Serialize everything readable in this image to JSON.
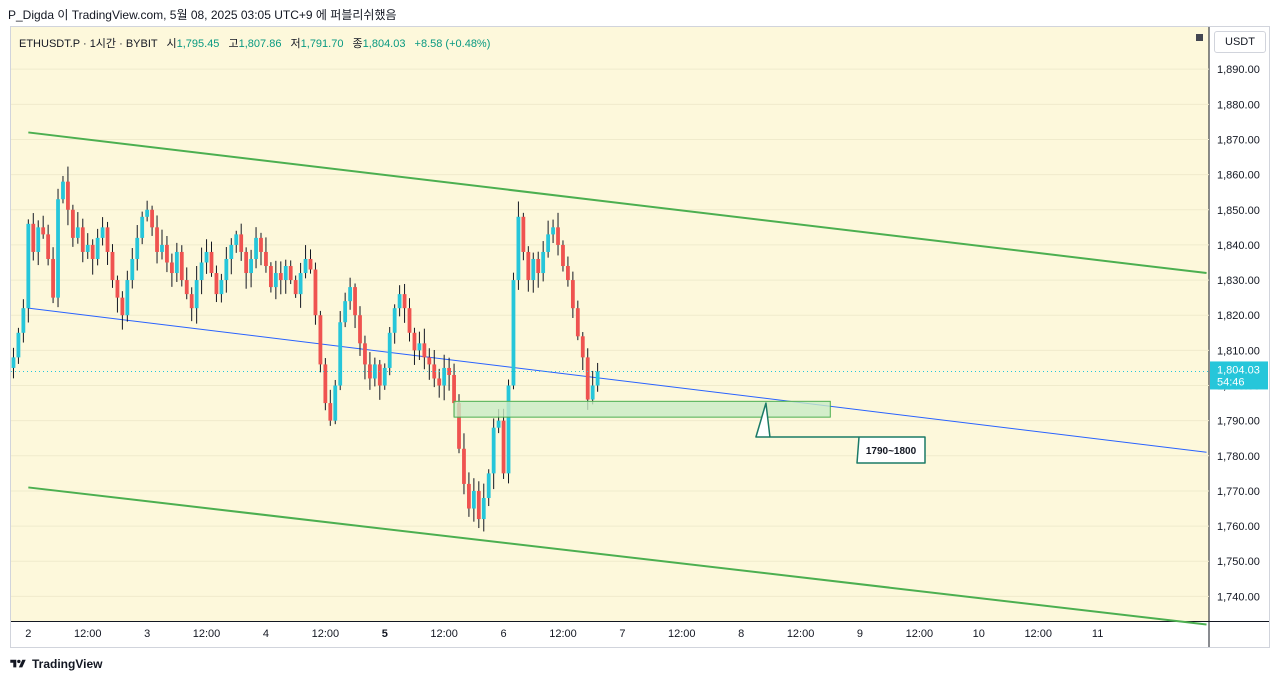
{
  "header": {
    "title": "P_Digda 이 TradingView.com, 5월 08, 2025 03:05 UTC+9 에 퍼블리쉬했음"
  },
  "legend": {
    "symbol": "ETHUSDT.P · 1시간 · BYBIT",
    "open_label": "시",
    "open": "1,795.45",
    "high_label": "고",
    "high": "1,807.86",
    "low_label": "저",
    "low": "1,791.70",
    "close_label": "종",
    "close": "1,804.03",
    "change": "+8.58 (+0.48%)"
  },
  "price_axis": {
    "unit": "USDT",
    "current_price": "1,804.03",
    "countdown": "54:46"
  },
  "footer": {
    "brand": "TradingView"
  },
  "colors": {
    "background": "#fdf8db",
    "up": "#26c6da",
    "down": "#ef5350",
    "channel": "#4caf50",
    "midline": "#2962ff",
    "zone_fill": "#c8ebc5",
    "zone_border": "#4caf50",
    "callout": "#1b7a66"
  },
  "chart_data": {
    "type": "candlestick",
    "symbol": "ETHUSDT.P",
    "interval": "1시간",
    "exchange": "BYBIT",
    "y_ticks": [
      "1,890.00",
      "1,880.00",
      "1,870.00",
      "1,860.00",
      "1,850.00",
      "1,840.00",
      "1,830.00",
      "1,820.00",
      "1,810.00",
      "1,800.00",
      "1,790.00",
      "1,780.00",
      "1,770.00",
      "1,760.00",
      "1,750.00",
      "1,740.00"
    ],
    "y_tick_values": [
      1890,
      1880,
      1870,
      1860,
      1850,
      1840,
      1830,
      1820,
      1810,
      1800,
      1790,
      1780,
      1770,
      1760,
      1750,
      1740
    ],
    "x_ticks": [
      {
        "label": "2",
        "t": 24
      },
      {
        "label": "12:00",
        "t": 36
      },
      {
        "label": "3",
        "t": 48
      },
      {
        "label": "12:00",
        "t": 60
      },
      {
        "label": "4",
        "t": 72
      },
      {
        "label": "12:00",
        "t": 84
      },
      {
        "label": "5",
        "t": 96
      },
      {
        "label": "12:00",
        "t": 108
      },
      {
        "label": "6",
        "t": 120
      },
      {
        "label": "12:00",
        "t": 132
      },
      {
        "label": "7",
        "t": 144
      },
      {
        "label": "12:00",
        "t": 156
      },
      {
        "label": "8",
        "t": 168
      },
      {
        "label": "12:00",
        "t": 180
      },
      {
        "label": "9",
        "t": 192
      },
      {
        "label": "12:00",
        "t": 204
      },
      {
        "label": "10",
        "t": 216
      },
      {
        "label": "12:00",
        "t": 228
      },
      {
        "label": "11",
        "t": 240
      }
    ],
    "time_unit": "hours since May 1 00:00",
    "y_range": [
      1733,
      1902
    ],
    "x_range": [
      20.5,
      262.5
    ],
    "anchors": [
      [
        20,
        1805
      ],
      [
        21,
        1808
      ],
      [
        22,
        1815
      ],
      [
        23,
        1822
      ],
      [
        24,
        1846
      ],
      [
        25,
        1838
      ],
      [
        26,
        1845
      ],
      [
        27,
        1843
      ],
      [
        28,
        1836
      ],
      [
        29,
        1825
      ],
      [
        30,
        1853
      ],
      [
        31,
        1858
      ],
      [
        32,
        1850
      ],
      [
        33,
        1842
      ],
      [
        34,
        1845
      ],
      [
        35,
        1838
      ],
      [
        36,
        1840
      ],
      [
        37,
        1836
      ],
      [
        38,
        1842
      ],
      [
        39,
        1845
      ],
      [
        40,
        1838
      ],
      [
        41,
        1830
      ],
      [
        42,
        1825
      ],
      [
        43,
        1820
      ],
      [
        44,
        1830
      ],
      [
        45,
        1836
      ],
      [
        46,
        1842
      ],
      [
        47,
        1848
      ],
      [
        48,
        1850
      ],
      [
        49,
        1845
      ],
      [
        50,
        1838
      ],
      [
        51,
        1840
      ],
      [
        52,
        1835
      ],
      [
        53,
        1832
      ],
      [
        54,
        1838
      ],
      [
        55,
        1830
      ],
      [
        56,
        1826
      ],
      [
        57,
        1822
      ],
      [
        58,
        1830
      ],
      [
        59,
        1835
      ],
      [
        60,
        1838
      ],
      [
        61,
        1832
      ],
      [
        62,
        1826
      ],
      [
        63,
        1830
      ],
      [
        64,
        1836
      ],
      [
        65,
        1840
      ],
      [
        66,
        1843
      ],
      [
        67,
        1838
      ],
      [
        68,
        1832
      ],
      [
        69,
        1836
      ],
      [
        70,
        1842
      ],
      [
        71,
        1838
      ],
      [
        72,
        1834
      ],
      [
        73,
        1828
      ],
      [
        74,
        1832
      ],
      [
        75,
        1830
      ],
      [
        76,
        1834
      ],
      [
        77,
        1830
      ],
      [
        78,
        1826
      ],
      [
        79,
        1832
      ],
      [
        80,
        1836
      ],
      [
        81,
        1833
      ],
      [
        82,
        1820
      ],
      [
        83,
        1806
      ],
      [
        84,
        1795
      ],
      [
        85,
        1790
      ],
      [
        86,
        1800
      ],
      [
        87,
        1818
      ],
      [
        88,
        1824
      ],
      [
        89,
        1828
      ],
      [
        90,
        1820
      ],
      [
        91,
        1812
      ],
      [
        92,
        1806
      ],
      [
        93,
        1802
      ],
      [
        94,
        1806
      ],
      [
        95,
        1800
      ],
      [
        96,
        1805
      ],
      [
        97,
        1815
      ],
      [
        98,
        1822
      ],
      [
        99,
        1826
      ],
      [
        100,
        1822
      ],
      [
        101,
        1815
      ],
      [
        102,
        1810
      ],
      [
        103,
        1812
      ],
      [
        104,
        1808
      ],
      [
        105,
        1806
      ],
      [
        106,
        1802
      ],
      [
        107,
        1800
      ],
      [
        108,
        1805
      ],
      [
        109,
        1803
      ],
      [
        110,
        1795
      ],
      [
        111,
        1782
      ],
      [
        112,
        1772
      ],
      [
        113,
        1765
      ],
      [
        114,
        1770
      ],
      [
        115,
        1762
      ],
      [
        116,
        1768
      ],
      [
        117,
        1775
      ],
      [
        118,
        1788
      ],
      [
        119,
        1790
      ],
      [
        120,
        1775
      ],
      [
        121,
        1800
      ],
      [
        122,
        1830
      ],
      [
        123,
        1848
      ],
      [
        124,
        1838
      ],
      [
        125,
        1830
      ],
      [
        126,
        1836
      ],
      [
        127,
        1832
      ],
      [
        128,
        1838
      ],
      [
        129,
        1843
      ],
      [
        130,
        1845
      ],
      [
        131,
        1840
      ],
      [
        132,
        1834
      ],
      [
        133,
        1830
      ],
      [
        134,
        1822
      ],
      [
        135,
        1814
      ],
      [
        136,
        1808
      ],
      [
        137,
        1796
      ],
      [
        138,
        1800
      ],
      [
        139,
        1804
      ]
    ],
    "channel_upper": [
      [
        24,
        1872
      ],
      [
        262,
        1832
      ]
    ],
    "channel_lower": [
      [
        24,
        1771
      ],
      [
        262,
        1732
      ]
    ],
    "midline": [
      [
        24,
        1822
      ],
      [
        262,
        1781
      ]
    ],
    "zone": {
      "t0": 110,
      "t1": 186,
      "low": 1791,
      "high": 1795.5
    },
    "callout": {
      "text": "1790~1800",
      "anchor_t": 173,
      "anchor_price": 1795
    }
  }
}
